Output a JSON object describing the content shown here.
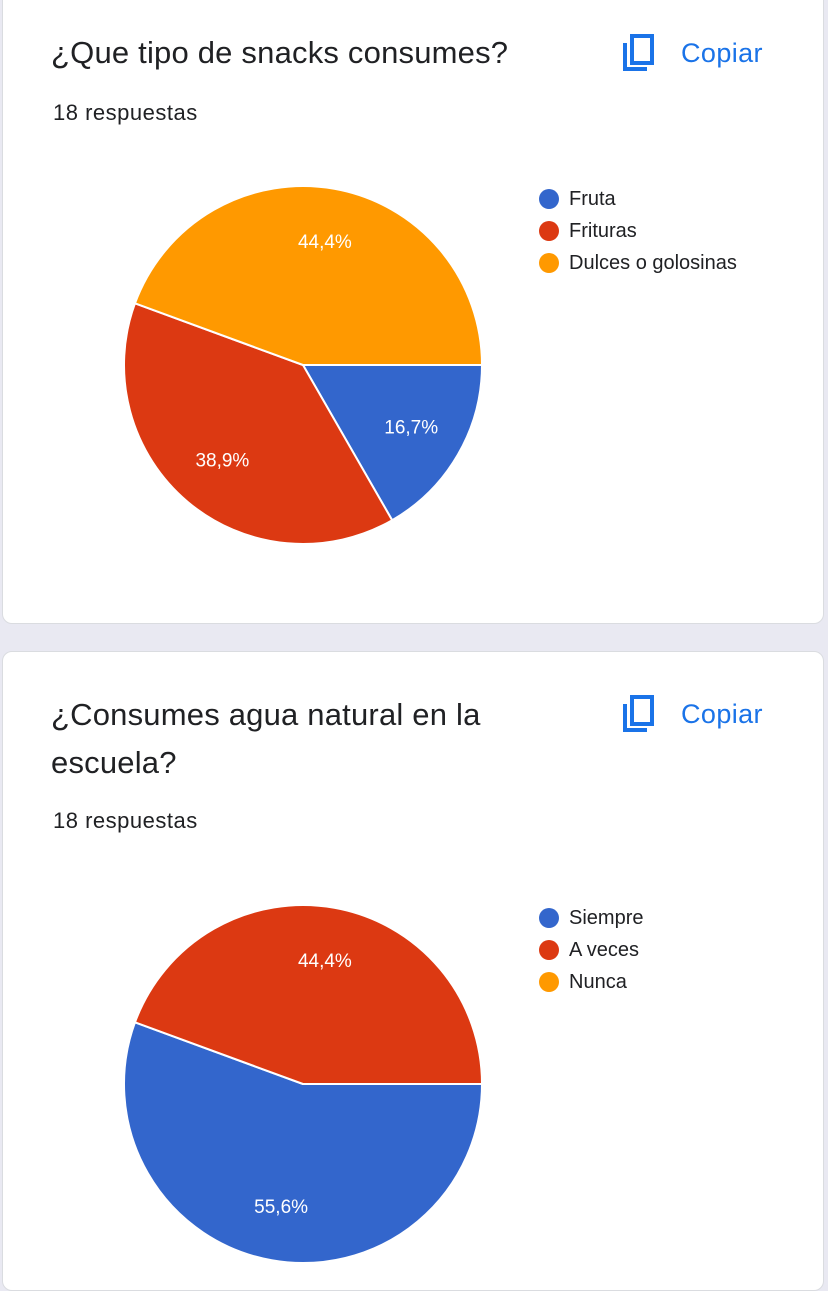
{
  "colors": {
    "blue": "#3366cc",
    "red": "#dc3912",
    "orange": "#ff9900",
    "link": "#1a73e8"
  },
  "copy_icon": "content-copy-icon",
  "chart_data": [
    {
      "type": "pie",
      "title": "¿Que tipo de snacks consumes?",
      "subtitle": "18 respuestas",
      "copy_label": "Copiar",
      "legend_position": "right",
      "series": [
        {
          "name": "Fruta",
          "value": 16.7,
          "label": "16,7%",
          "color": "#3366cc"
        },
        {
          "name": "Frituras",
          "value": 38.9,
          "label": "38,9%",
          "color": "#dc3912"
        },
        {
          "name": "Dulces o golosinas",
          "value": 44.4,
          "label": "44,4%",
          "color": "#ff9900"
        }
      ]
    },
    {
      "type": "pie",
      "title": "¿Consumes agua natural en la escuela?",
      "subtitle": "18 respuestas",
      "copy_label": "Copiar",
      "legend_position": "right",
      "series": [
        {
          "name": "Siempre",
          "value": 55.6,
          "label": "55,6%",
          "color": "#3366cc"
        },
        {
          "name": "A veces",
          "value": 44.4,
          "label": "44,4%",
          "color": "#dc3912"
        },
        {
          "name": "Nunca",
          "value": 0,
          "label": "0%",
          "color": "#ff9900"
        }
      ]
    }
  ]
}
